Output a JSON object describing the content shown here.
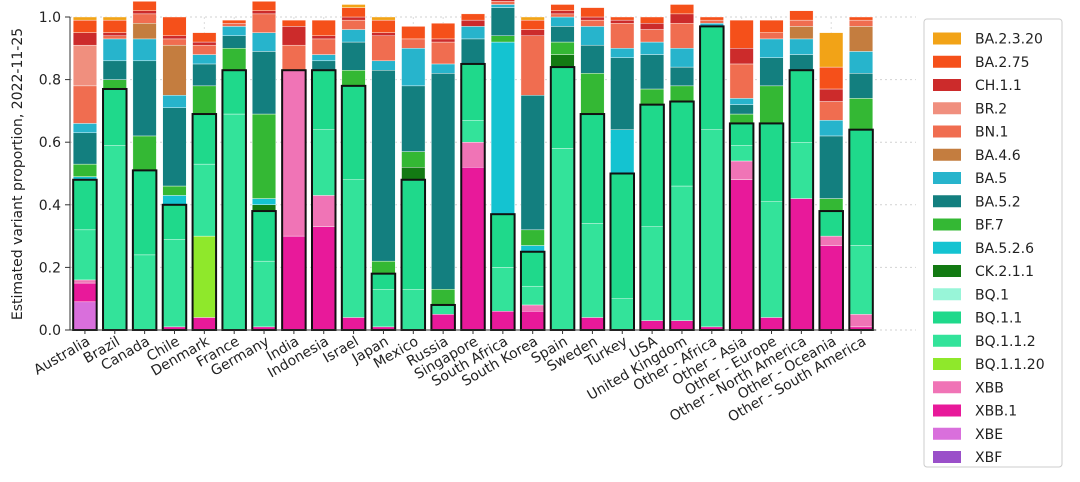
{
  "chart_data": {
    "type": "bar",
    "stacked": true,
    "ylabel": "Estimated variant proportion, 2022-11-25",
    "xlabel": "",
    "ylim": [
      0,
      1.0
    ],
    "yticks": [
      "0.0",
      "0.2",
      "0.4",
      "0.6",
      "0.8",
      "1.0"
    ],
    "grid": true,
    "legend_position": "right",
    "categories": [
      "Australia",
      "Brazil",
      "Canada",
      "Chile",
      "Denmark",
      "France",
      "Germany",
      "India",
      "Indonesia",
      "Israel",
      "Japan",
      "Mexico",
      "Russia",
      "Singapore",
      "South Africa",
      "South Korea",
      "Spain",
      "Sweden",
      "Turkey",
      "USA",
      "United Kingdom",
      "Other - Africa",
      "Other - Asia",
      "Other - Europe",
      "Other - North America",
      "Other - Oceania",
      "Other - South America"
    ],
    "outlined_totals": [
      0.48,
      0.77,
      0.51,
      0.4,
      0.69,
      0.83,
      0.38,
      0.83,
      0.83,
      0.78,
      0.18,
      0.48,
      0.08,
      0.85,
      0.37,
      0.25,
      0.84,
      0.69,
      0.5,
      0.72,
      0.73,
      0.97,
      0.66,
      0.66,
      0.83,
      0.38,
      0.64
    ],
    "series": [
      {
        "name": "XBF",
        "color": "#9a4fc9",
        "values": [
          0,
          0,
          0,
          0,
          0,
          0,
          0,
          0,
          0,
          0,
          0,
          0,
          0,
          0,
          0,
          0,
          0,
          0,
          0,
          0,
          0,
          0,
          0,
          0,
          0,
          0,
          0
        ]
      },
      {
        "name": "XBE",
        "color": "#d96fdc",
        "values": [
          0.09,
          0,
          0,
          0,
          0,
          0,
          0,
          0,
          0,
          0,
          0,
          0,
          0,
          0,
          0,
          0,
          0,
          0,
          0,
          0,
          0,
          0,
          0,
          0,
          0,
          0,
          0
        ]
      },
      {
        "name": "XBB.1",
        "color": "#e8199a",
        "values": [
          0.06,
          0,
          0,
          0.01,
          0.04,
          0,
          0.01,
          0.3,
          0.33,
          0.04,
          0.01,
          0,
          0.05,
          0.52,
          0.06,
          0.06,
          0,
          0.04,
          0,
          0.03,
          0.03,
          0.01,
          0.48,
          0.04,
          0.42,
          0.27,
          0.01
        ]
      },
      {
        "name": "XBB",
        "color": "#f074b6",
        "values": [
          0.01,
          0,
          0,
          0,
          0,
          0,
          0,
          0.53,
          0.1,
          0,
          0,
          0,
          0,
          0.08,
          0,
          0.02,
          0,
          0,
          0,
          0,
          0,
          0,
          0.06,
          0,
          0,
          0.03,
          0.04
        ]
      },
      {
        "name": "BQ.1.1.20",
        "color": "#8fe82b",
        "values": [
          0,
          0,
          0,
          0,
          0.26,
          0,
          0,
          0,
          0,
          0,
          0,
          0,
          0,
          0,
          0,
          0,
          0,
          0,
          0,
          0,
          0,
          0,
          0,
          0,
          0,
          0,
          0
        ]
      },
      {
        "name": "BQ.1.1.2",
        "color": "#33e39a",
        "values": [
          0.16,
          0.59,
          0.24,
          0.28,
          0.23,
          0.69,
          0.21,
          0,
          0.21,
          0.44,
          0.12,
          0.13,
          0.03,
          0.07,
          0.14,
          0.06,
          0.58,
          0.3,
          0.1,
          0.3,
          0.43,
          0.63,
          0.05,
          0.37,
          0.18,
          0,
          0.22
        ]
      },
      {
        "name": "BQ.1.1",
        "color": "#1fd98b",
        "values": [
          0.16,
          0.18,
          0.27,
          0.11,
          0.16,
          0.14,
          0.16,
          0,
          0.19,
          0.3,
          0.05,
          0.35,
          0,
          0.18,
          0.17,
          0.11,
          0.26,
          0.35,
          0.4,
          0.39,
          0.27,
          0.33,
          0.07,
          0.25,
          0.23,
          0.08,
          0.37
        ]
      },
      {
        "name": "BQ.1",
        "color": "#98f5d8",
        "values": [
          0,
          0,
          0,
          0,
          0,
          0,
          0,
          0,
          0,
          0,
          0,
          0,
          0,
          0,
          0,
          0,
          0,
          0,
          0,
          0,
          0,
          0,
          0,
          0,
          0,
          0,
          0
        ]
      },
      {
        "name": "CK.2.1.1",
        "color": "#137a13",
        "values": [
          0,
          0,
          0,
          0,
          0,
          0,
          0.02,
          0,
          0,
          0,
          0,
          0.04,
          0,
          0,
          0,
          0,
          0.04,
          0,
          0,
          0,
          0,
          0,
          0,
          0,
          0,
          0,
          0
        ]
      },
      {
        "name": "BA.5.2.6",
        "color": "#14c3d1",
        "values": [
          0.01,
          0,
          0,
          0.03,
          0,
          0,
          0.02,
          0,
          0,
          0,
          0,
          0,
          0,
          0,
          0.55,
          0.02,
          0,
          0,
          0.14,
          0,
          0,
          0,
          0,
          0,
          0,
          0,
          0
        ]
      },
      {
        "name": "BF.7",
        "color": "#34b834",
        "values": [
          0.04,
          0.03,
          0.11,
          0.03,
          0.09,
          0.07,
          0.27,
          0,
          0,
          0.05,
          0.04,
          0.05,
          0.05,
          0,
          0.02,
          0.05,
          0.04,
          0.13,
          0,
          0.05,
          0.05,
          0,
          0.03,
          0.12,
          0,
          0.04,
          0.1
        ]
      },
      {
        "name": "BA.5.2",
        "color": "#137f7f",
        "values": [
          0.1,
          0.06,
          0.24,
          0.25,
          0.07,
          0.04,
          0.2,
          0,
          0.03,
          0.09,
          0.61,
          0.21,
          0.69,
          0.08,
          0.09,
          0.43,
          0.05,
          0.09,
          0.23,
          0.11,
          0.06,
          0,
          0.03,
          0.09,
          0.05,
          0.2,
          0.08
        ]
      },
      {
        "name": "BA.5",
        "color": "#27b4cc",
        "values": [
          0.03,
          0.07,
          0.07,
          0.04,
          0.03,
          0.03,
          0.06,
          0,
          0.02,
          0.04,
          0.03,
          0.12,
          0.03,
          0.04,
          0.01,
          0,
          0.03,
          0.06,
          0.03,
          0.04,
          0.06,
          0.01,
          0.02,
          0.06,
          0.05,
          0.05,
          0.07
        ]
      },
      {
        "name": "BA.4.6",
        "color": "#c47d3f",
        "values": [
          0,
          0,
          0.05,
          0.16,
          0,
          0,
          0,
          0,
          0,
          0,
          0,
          0,
          0,
          0,
          0,
          0,
          0,
          0,
          0,
          0,
          0,
          0,
          0,
          0,
          0.04,
          0,
          0.08
        ]
      },
      {
        "name": "BN.1",
        "color": "#f06d50",
        "values": [
          0.12,
          0.01,
          0.03,
          0.02,
          0.03,
          0.01,
          0.06,
          0.08,
          0.05,
          0.03,
          0.08,
          0.03,
          0.07,
          0,
          0.01,
          0.19,
          0.01,
          0.02,
          0.08,
          0.04,
          0.08,
          0.01,
          0.11,
          0.02,
          0.02,
          0.06,
          0.02
        ]
      },
      {
        "name": "BR.2",
        "color": "#f08f7e",
        "values": [
          0.13,
          0,
          0,
          0,
          0,
          0,
          0,
          0,
          0,
          0,
          0,
          0,
          0,
          0,
          0,
          0,
          0,
          0,
          0,
          0,
          0,
          0,
          0,
          0,
          0,
          0,
          0
        ]
      },
      {
        "name": "CH.1.1",
        "color": "#cc2b2b",
        "values": [
          0.04,
          0.01,
          0.01,
          0.01,
          0.01,
          0,
          0.01,
          0.06,
          0.01,
          0.01,
          0.01,
          0,
          0.01,
          0.02,
          0.01,
          0.02,
          0.01,
          0.01,
          0.01,
          0.02,
          0.03,
          0,
          0.05,
          0,
          0,
          0.04,
          0
        ]
      },
      {
        "name": "BA.2.75",
        "color": "#f5501a",
        "values": [
          0.04,
          0.04,
          0.03,
          0.06,
          0.03,
          0.01,
          0.03,
          0.02,
          0.05,
          0.03,
          0.04,
          0.04,
          0.05,
          0.02,
          0.02,
          0.03,
          0.02,
          0.03,
          0.01,
          0.02,
          0.03,
          0.01,
          0.09,
          0.04,
          0.03,
          0.07,
          0.01
        ]
      },
      {
        "name": "BA.2.3.20",
        "color": "#f2a317",
        "values": [
          0.01,
          0.01,
          0,
          0,
          0,
          0,
          0,
          0,
          0,
          0.01,
          0.01,
          0,
          0,
          0,
          0,
          0.01,
          0,
          0,
          0,
          0,
          0,
          0,
          0,
          0,
          0,
          0.11,
          0
        ]
      }
    ]
  }
}
